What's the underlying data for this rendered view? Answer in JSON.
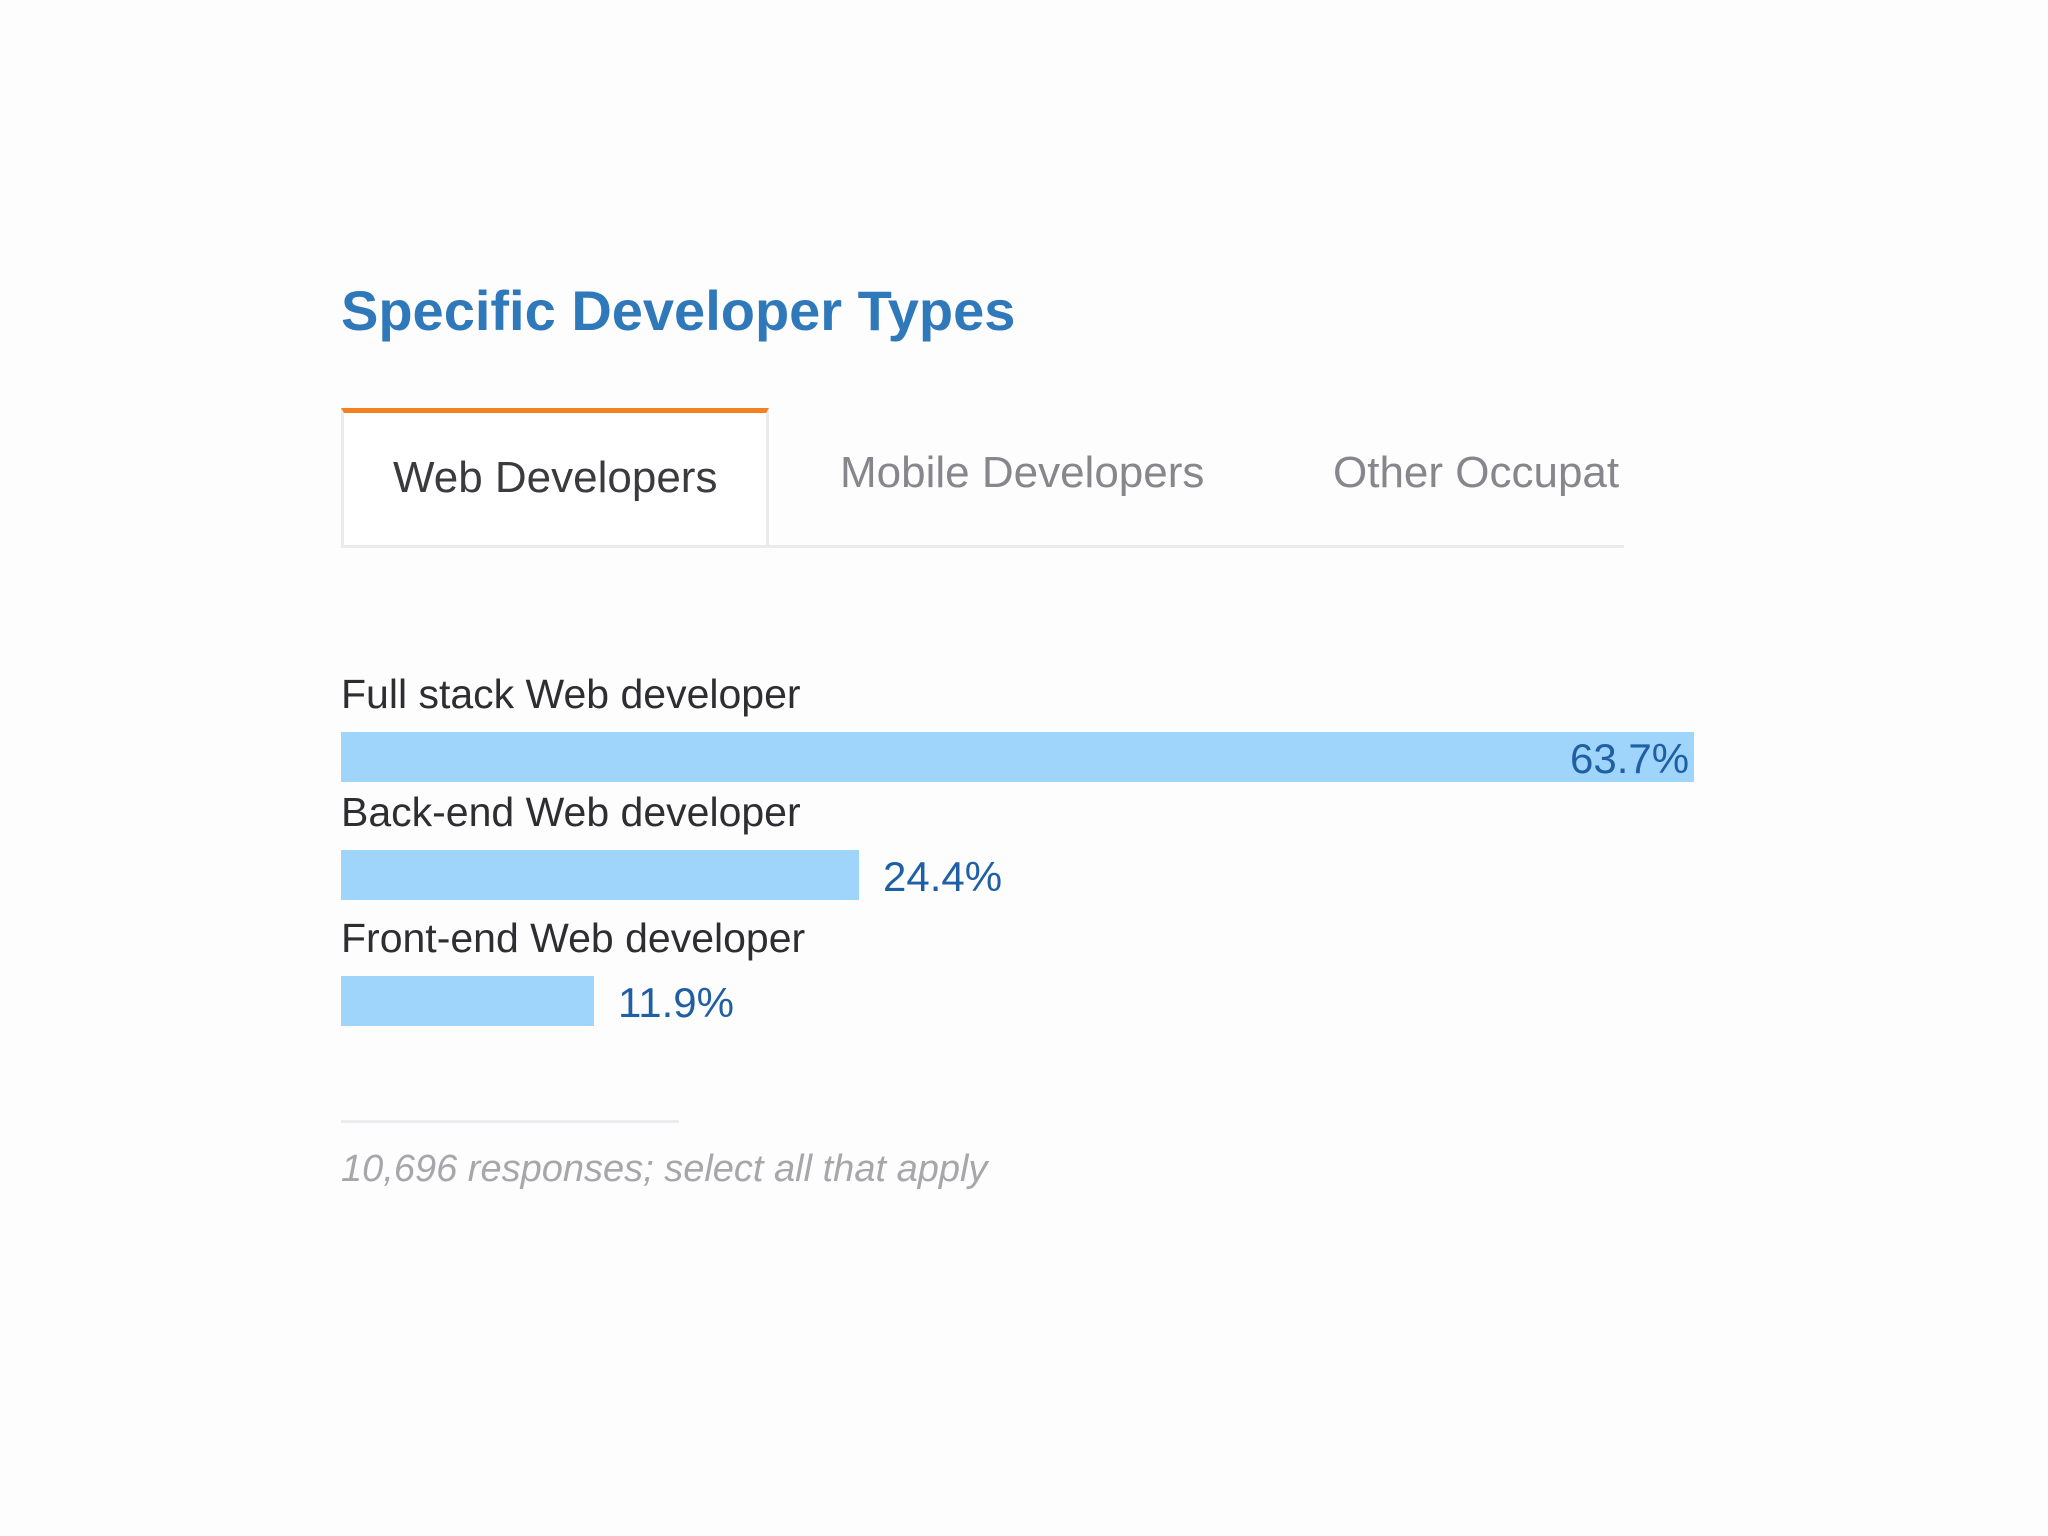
{
  "page": {
    "title": "Specific Developer Types",
    "footnote": "10,696 responses; select all that apply"
  },
  "tabs": [
    {
      "label": "Web Developers",
      "active": true
    },
    {
      "label": "Mobile Developers",
      "active": false
    },
    {
      "label": "Other Occupat",
      "active": false
    }
  ],
  "colors": {
    "title": "#2f78ba",
    "active_tab_accent": "#f48024",
    "bar": "#9fd4fb",
    "value_text": "#1f5fa3"
  },
  "chart_data": {
    "type": "bar",
    "orientation": "horizontal",
    "categories": [
      "Full stack Web developer",
      "Back-end Web developer",
      "Front-end Web developer"
    ],
    "values": [
      63.7,
      24.4,
      11.9
    ],
    "value_labels": [
      "63.7%",
      "24.4%",
      "11.9%"
    ],
    "unit": "%",
    "xlim": [
      0,
      63.7
    ],
    "grid": false,
    "legend": "none"
  }
}
